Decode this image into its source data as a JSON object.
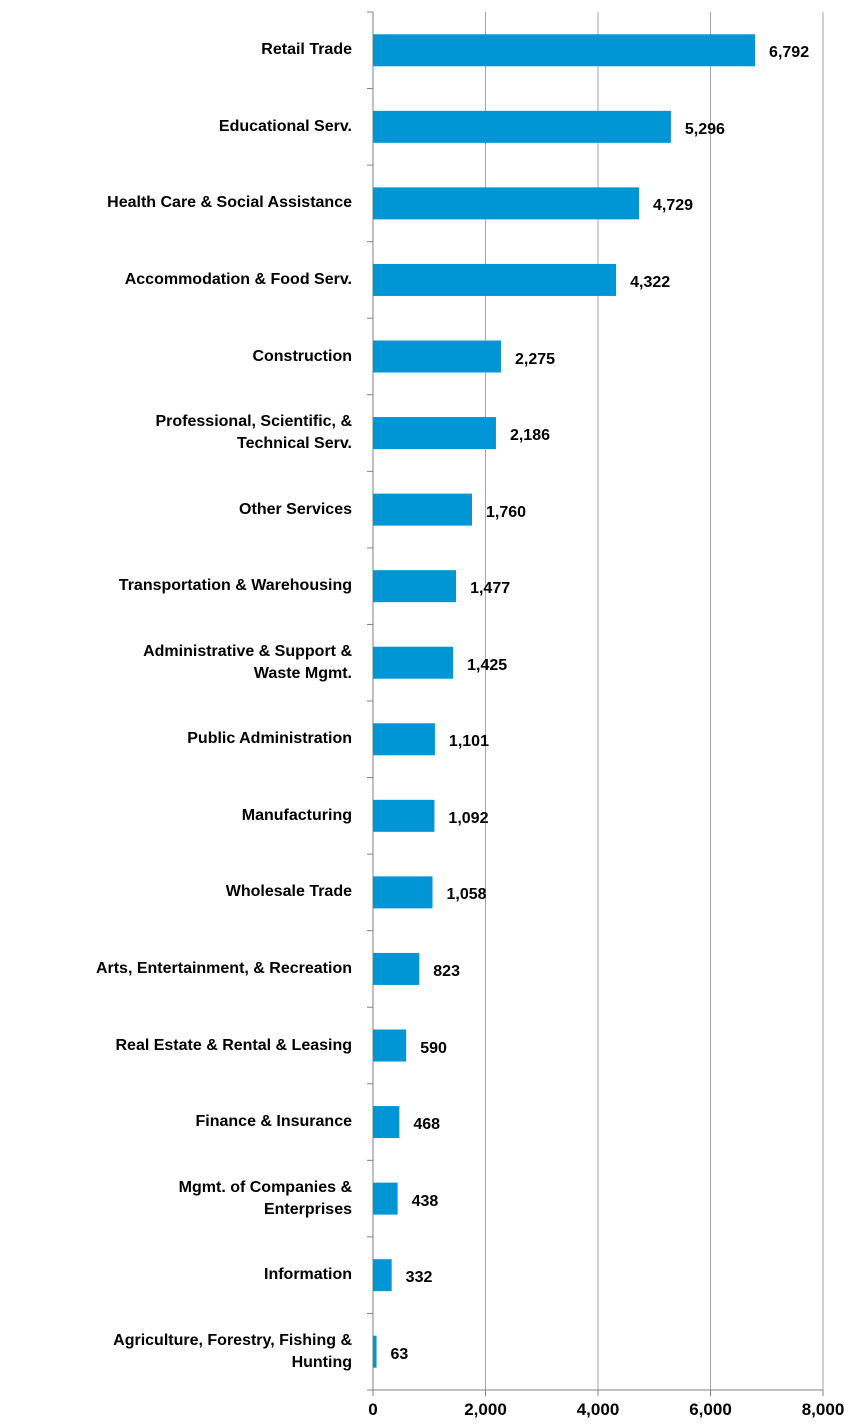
{
  "chart_data": {
    "type": "barh",
    "categories": [
      "Retail Trade",
      "Educational Serv.",
      "Health Care & Social Assistance",
      "Accommodation & Food Serv.",
      "Construction",
      "Professional, Scientific, &\nTechnical Serv.",
      "Other Services",
      "Transportation & Warehousing",
      "Administrative & Support &\nWaste Mgmt.",
      "Public Administration",
      "Manufacturing",
      "Wholesale Trade",
      "Arts, Entertainment, & Recreation",
      "Real Estate & Rental & Leasing",
      "Finance & Insurance",
      "Mgmt. of Companies &\nEnterprises",
      "Information",
      "Agriculture, Forestry, Fishing &\nHunting"
    ],
    "values": [
      6792,
      5296,
      4729,
      4322,
      2275,
      2186,
      1760,
      1477,
      1425,
      1101,
      1092,
      1058,
      823,
      590,
      468,
      438,
      332,
      63
    ],
    "value_labels": [
      "6,792",
      "5,296",
      "4,729",
      "4,322",
      "2,275",
      "2,186",
      "1,760",
      "1,477",
      "1,425",
      "1,101",
      "1,092",
      "1,058",
      "823",
      "590",
      "468",
      "438",
      "332",
      "63"
    ],
    "color": "#0096d6",
    "xlim": [
      0,
      8000
    ],
    "xticks": [
      0,
      {
        "value": 2000,
        "label": "2,000"
      },
      {
        "value": 4000,
        "label": "4,000"
      },
      {
        "value": 6000,
        "label": "6,000"
      },
      {
        "value": 8000,
        "label": "8,000"
      }
    ],
    "grid": true
  }
}
